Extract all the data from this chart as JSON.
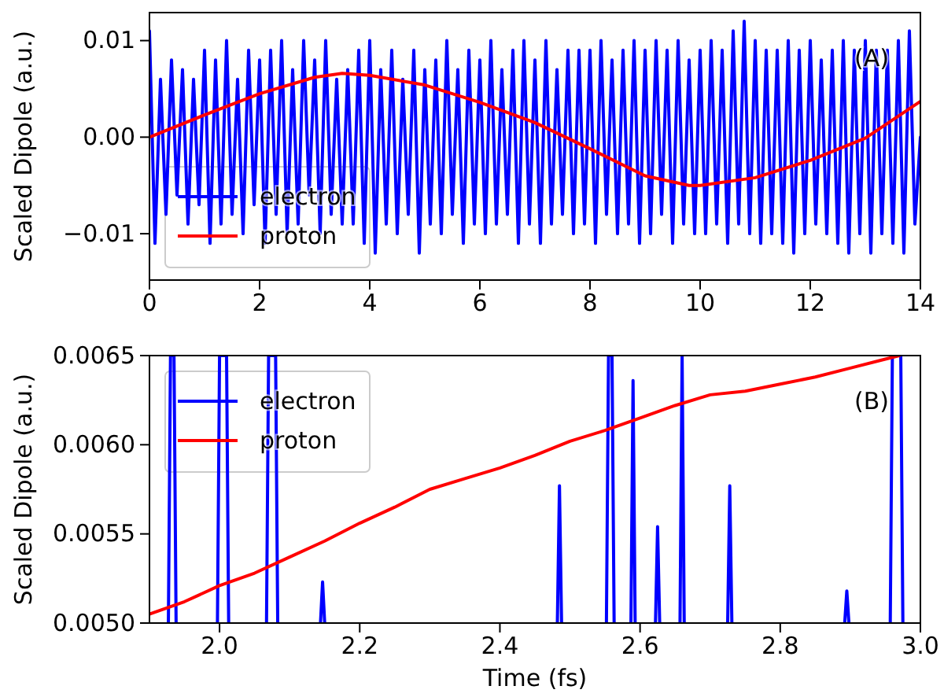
{
  "chart_data": [
    {
      "type": "line",
      "ylabel": "Scaled Dipole (a.u.)",
      "annotations": [
        "(A)"
      ],
      "legend": "bottom left",
      "grid": false,
      "xlim": [
        0,
        14
      ],
      "xticks": [
        0,
        2,
        4,
        6,
        8,
        10,
        12,
        14
      ],
      "ylim": [
        -0.0148,
        0.0129
      ],
      "yticks": [
        {
          "value": -0.01,
          "label": "−0.01"
        },
        {
          "value": 0,
          "label": "0.00"
        },
        {
          "value": 0.01,
          "label": "0.01"
        }
      ],
      "series": [
        {
          "name": "electron",
          "color": "#0000ff",
          "x": [
            0,
            0.1,
            0.2,
            0.3,
            0.4,
            0.5,
            0.6,
            0.7,
            0.8,
            0.9,
            1,
            1.1,
            1.2,
            1.3,
            1.4,
            1.5,
            1.6,
            1.7,
            1.8,
            1.9,
            2,
            2.1,
            2.2,
            2.3,
            2.4,
            2.5,
            2.6,
            2.7,
            2.8,
            2.9,
            3,
            3.1,
            3.2,
            3.3,
            3.4,
            3.5,
            3.6,
            3.7,
            3.8,
            3.9,
            4,
            4.1,
            4.2,
            4.3,
            4.4,
            4.5,
            4.6,
            4.7,
            4.8,
            4.9,
            5,
            5.1,
            5.2,
            5.3,
            5.4,
            5.5,
            5.6,
            5.7,
            5.8,
            5.9,
            6,
            6.1,
            6.2,
            6.3,
            6.4,
            6.5,
            6.6,
            6.7,
            6.8,
            6.9,
            7,
            7.1,
            7.2,
            7.3,
            7.4,
            7.5,
            7.6,
            7.7,
            7.8,
            7.9,
            8,
            8.1,
            8.2,
            8.3,
            8.4,
            8.5,
            8.6,
            8.7,
            8.8,
            8.9,
            9,
            9.1,
            9.2,
            9.3,
            9.4,
            9.5,
            9.6,
            9.7,
            9.8,
            9.9,
            10,
            10.1,
            10.2,
            10.3,
            10.4,
            10.5,
            10.6,
            10.7,
            10.8,
            10.9,
            11,
            11.1,
            11.2,
            11.3,
            11.4,
            11.5,
            11.6,
            11.7,
            11.8,
            11.9,
            12,
            12.1,
            12.2,
            12.3,
            12.4,
            12.5,
            12.6,
            12.7,
            12.8,
            12.9,
            13,
            13.1,
            13.2,
            13.3,
            13.4,
            13.5,
            13.6,
            13.7,
            13.8,
            13.9,
            14
          ],
          "values": [
            0.011,
            -0.011,
            0.006,
            -0.008,
            0.008,
            -0.006,
            0.007,
            -0.009,
            0.006,
            -0.007,
            0.009,
            -0.011,
            0.008,
            -0.009,
            0.01,
            -0.008,
            0.006,
            -0.01,
            0.009,
            -0.007,
            0.008,
            -0.011,
            0.009,
            -0.008,
            0.01,
            -0.01,
            0.007,
            -0.009,
            0.01,
            -0.006,
            0.008,
            -0.01,
            0.01,
            -0.008,
            0.006,
            -0.009,
            0.007,
            -0.009,
            0.009,
            -0.011,
            0.01,
            -0.012,
            0.007,
            -0.009,
            0.009,
            -0.01,
            0.006,
            -0.008,
            0.009,
            -0.012,
            0.007,
            -0.009,
            0.008,
            -0.01,
            0.01,
            -0.008,
            0.007,
            -0.011,
            0.009,
            -0.009,
            0.008,
            -0.01,
            0.01,
            -0.009,
            0.007,
            -0.008,
            0.009,
            -0.011,
            0.01,
            -0.009,
            0.008,
            -0.011,
            0.01,
            -0.009,
            0.007,
            -0.008,
            0.009,
            -0.01,
            0.009,
            -0.009,
            0.009,
            -0.011,
            0.01,
            -0.008,
            0.008,
            -0.01,
            0.009,
            -0.009,
            0.01,
            -0.011,
            0.009,
            -0.01,
            0.01,
            -0.008,
            0.009,
            -0.011,
            0.01,
            -0.009,
            0.008,
            -0.01,
            0.009,
            -0.01,
            0.01,
            -0.009,
            0.009,
            -0.011,
            0.011,
            -0.009,
            0.012,
            -0.01,
            0.01,
            -0.011,
            0.009,
            -0.01,
            0.009,
            -0.011,
            0.01,
            -0.012,
            0.009,
            -0.01,
            0.01,
            -0.009,
            0.008,
            -0.01,
            0.009,
            -0.011,
            0.01,
            -0.012,
            0.009,
            -0.01,
            0.01,
            -0.012,
            0.009,
            -0.01,
            0.009,
            -0.011,
            0.01,
            -0.012,
            0.011,
            -0.009,
            0.0
          ]
        },
        {
          "name": "proton",
          "color": "#ff0000",
          "x": [
            0,
            1,
            2,
            3,
            3.5,
            4,
            5,
            6,
            7,
            8,
            9,
            9.8,
            10,
            11,
            12,
            13,
            14
          ],
          "values": [
            0,
            0.0023,
            0.0045,
            0.0062,
            0.0066,
            0.0064,
            0.0054,
            0.0036,
            0.0015,
            -0.0012,
            -0.004,
            -0.005,
            -0.005,
            -0.0042,
            -0.0024,
            -0.0001,
            0.0037
          ]
        }
      ]
    },
    {
      "type": "line",
      "xlabel": "Time (fs)",
      "ylabel": "Scaled Dipole (a.u.)",
      "annotations": [
        "(B)"
      ],
      "legend": "top left",
      "grid": false,
      "xlim": [
        1.9,
        3.0
      ],
      "xticks": [
        {
          "value": 2,
          "label": "2.0"
        },
        2.2,
        2.4,
        2.6,
        2.8,
        {
          "value": 3,
          "label": "3.0"
        }
      ],
      "ylim": [
        0.005,
        0.0065
      ],
      "yticks": [
        {
          "value": 0.005,
          "label": "0.0050"
        },
        0.0055,
        {
          "value": 0.006,
          "label": "0.0060"
        },
        0.0065
      ],
      "series": [
        {
          "name": "electron",
          "color": "#0000ff",
          "x": [
            1.927,
            1.93,
            1.935,
            1.938,
            1.99,
            1.997,
            2.0,
            2.01,
            2.013,
            2.02,
            2.067,
            2.07,
            2.08,
            2.083,
            2.1,
            2.144,
            2.147,
            2.15,
            2.2,
            2.482,
            2.485,
            2.488,
            2.52,
            2.552,
            2.555,
            2.56,
            2.563,
            2.575,
            2.587,
            2.59,
            2.593,
            2.61,
            2.622,
            2.625,
            2.628,
            2.64,
            2.657,
            2.66,
            2.663,
            2.7,
            2.725,
            2.728,
            2.731,
            2.8,
            2.892,
            2.895,
            2.898,
            2.93,
            2.957,
            2.96,
            2.972,
            2.975
          ],
          "values": [
            0.005,
            0.0065,
            0.0065,
            0.005,
            null,
            0.005,
            0.0065,
            0.0065,
            0.005,
            null,
            0.005,
            0.0065,
            0.0065,
            0.005,
            null,
            0.005,
            0.00523,
            0.005,
            null,
            0.005,
            0.00577,
            0.005,
            null,
            0.005,
            0.0065,
            0.0065,
            0.005,
            null,
            0.005,
            0.00636,
            0.005,
            null,
            0.005,
            0.00554,
            0.005,
            null,
            0.005,
            0.0065,
            0.005,
            null,
            0.005,
            0.00577,
            0.005,
            null,
            0.005,
            0.00518,
            0.005,
            null,
            0.005,
            0.0065,
            0.0065,
            0.005
          ]
        },
        {
          "name": "proton",
          "color": "#ff0000",
          "x": [
            1.9,
            1.95,
            2.0,
            2.05,
            2.1,
            2.15,
            2.2,
            2.25,
            2.3,
            2.35,
            2.4,
            2.45,
            2.5,
            2.55,
            2.6,
            2.65,
            2.7,
            2.75,
            2.8,
            2.85,
            2.9,
            2.95,
            2.97
          ],
          "values": [
            0.00505,
            0.00512,
            0.00521,
            0.00528,
            0.00537,
            0.00546,
            0.00556,
            0.00565,
            0.00575,
            0.00581,
            0.00587,
            0.00594,
            0.00602,
            0.00608,
            0.00615,
            0.00622,
            0.00628,
            0.0063,
            0.00634,
            0.00638,
            0.00643,
            0.00648,
            0.0065
          ]
        }
      ]
    }
  ]
}
